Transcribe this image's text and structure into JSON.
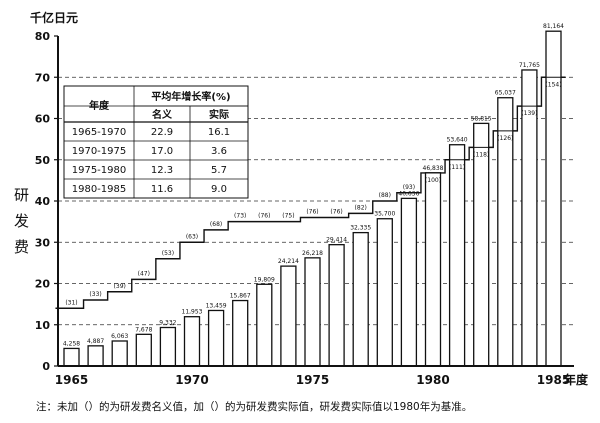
{
  "chart_data": {
    "type": "bar",
    "y_unit": "千亿日元",
    "ylabel": "研发费",
    "x_axis_label": "年度",
    "ylim": [
      0,
      80
    ],
    "yticks": [
      "0",
      "10",
      "20",
      "30",
      "40",
      "50",
      "60",
      "70",
      "80"
    ],
    "x_ticks": [
      "1965",
      "1970",
      "1975",
      "1980",
      "1985"
    ],
    "grid": "dashed horizontal lines at 10–70",
    "categories": [
      "1965",
      "1966",
      "1967",
      "1968",
      "1969",
      "1970",
      "1971",
      "1972",
      "1973",
      "1974",
      "1975",
      "1976",
      "1977",
      "1978",
      "1979",
      "1980",
      "1981",
      "1982",
      "1983",
      "1984",
      "1985"
    ],
    "series": [
      {
        "name": "名义",
        "values": [
          4.258,
          4.887,
          6.063,
          7.678,
          9.332,
          11.953,
          13.459,
          15.867,
          19.809,
          24.214,
          26.218,
          29.414,
          32.335,
          35.7,
          40.636,
          46.838,
          53.64,
          58.815,
          65.037,
          71.765,
          81.164
        ],
        "labels": [
          "4,258",
          "4,887",
          "6,063",
          "7,678",
          "9,332",
          "11,953",
          "13,459",
          "15,867",
          "19,809",
          "24,214",
          "26,218",
          "29,414",
          "32,335",
          "35,700",
          "40,636",
          "46,838",
          "53,640",
          "58,815",
          "65,037",
          "71,765",
          "81,164"
        ]
      },
      {
        "name": "实际",
        "values": [
          14,
          16,
          18,
          21,
          26,
          30,
          33,
          35,
          35,
          35,
          36,
          36,
          37,
          40,
          42,
          46.8,
          50,
          53,
          57,
          63,
          70
        ],
        "labels": [
          "(31)",
          "(33)",
          "(39)",
          "(47)",
          "(53)",
          "(63)",
          "(68)",
          "(73)",
          "(76)",
          "(75)",
          "(76)",
          "(76)",
          "(82)",
          "(88)",
          "(93)",
          "(100)",
          "(111)",
          "(118)",
          "(126)",
          "(139)",
          "(154)"
        ]
      }
    ],
    "table": {
      "header_year": "年度",
      "header_rate": "平均年增长率(%)",
      "header_nominal": "名义",
      "header_real": "实际",
      "rows": [
        {
          "period": "1965-1970",
          "nominal": "22.9",
          "real": "16.1"
        },
        {
          "period": "1970-1975",
          "nominal": "17.0",
          "real": "3.6"
        },
        {
          "period": "1975-1980",
          "nominal": "12.3",
          "real": "5.7"
        },
        {
          "period": "1980-1985",
          "nominal": "11.6",
          "real": "9.0"
        }
      ]
    }
  },
  "note": "注：未加（）的为研发费名义值，加（）的为研发费实际值，研发费实际值以1980年为基准。"
}
